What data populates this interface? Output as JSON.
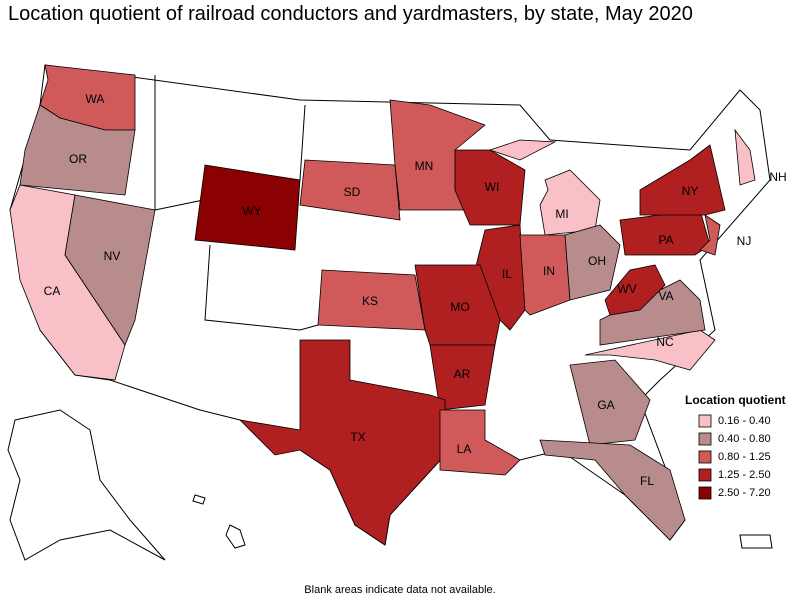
{
  "title": "Location quotient of railroad conductors and yardmasters, by state, May 2020",
  "legend": {
    "title": "Location quotient",
    "items": [
      {
        "label": "0.16 - 0.40",
        "color": "#f9c0c8"
      },
      {
        "label": "0.40 - 0.80",
        "color": "#b88c8c"
      },
      {
        "label": "0.80 - 1.25",
        "color": "#d05a5a"
      },
      {
        "label": "1.25 - 2.50",
        "color": "#b02020"
      },
      {
        "label": "2.50 - 7.20",
        "color": "#8b0000"
      }
    ]
  },
  "states": [
    {
      "abbr": "WA",
      "color": "#d05a5a"
    },
    {
      "abbr": "OR",
      "color": "#b88c8c"
    },
    {
      "abbr": "CA",
      "color": "#f9c0c8"
    },
    {
      "abbr": "NV",
      "color": "#b88c8c"
    },
    {
      "abbr": "WY",
      "color": "#8b0000"
    },
    {
      "abbr": "SD",
      "color": "#d05a5a"
    },
    {
      "abbr": "MN",
      "color": "#d05a5a"
    },
    {
      "abbr": "WI",
      "color": "#b02020"
    },
    {
      "abbr": "MI",
      "color": "#f9c0c8"
    },
    {
      "abbr": "IL",
      "color": "#b02020"
    },
    {
      "abbr": "IN",
      "color": "#d05a5a"
    },
    {
      "abbr": "OH",
      "color": "#b88c8c"
    },
    {
      "abbr": "KS",
      "color": "#d05a5a"
    },
    {
      "abbr": "MO",
      "color": "#b02020"
    },
    {
      "abbr": "AR",
      "color": "#b02020"
    },
    {
      "abbr": "TX",
      "color": "#b02020"
    },
    {
      "abbr": "LA",
      "color": "#d05a5a"
    },
    {
      "abbr": "GA",
      "color": "#b88c8c"
    },
    {
      "abbr": "FL",
      "color": "#b88c8c"
    },
    {
      "abbr": "NC",
      "color": "#f9c0c8"
    },
    {
      "abbr": "VA",
      "color": "#b88c8c"
    },
    {
      "abbr": "WV",
      "color": "#b02020"
    },
    {
      "abbr": "PA",
      "color": "#b02020"
    },
    {
      "abbr": "NY",
      "color": "#b02020"
    },
    {
      "abbr": "NJ",
      "color": "#d05a5a"
    },
    {
      "abbr": "NH",
      "color": "#f9c0c8"
    }
  ],
  "note": "Blank areas indicate data not available."
}
